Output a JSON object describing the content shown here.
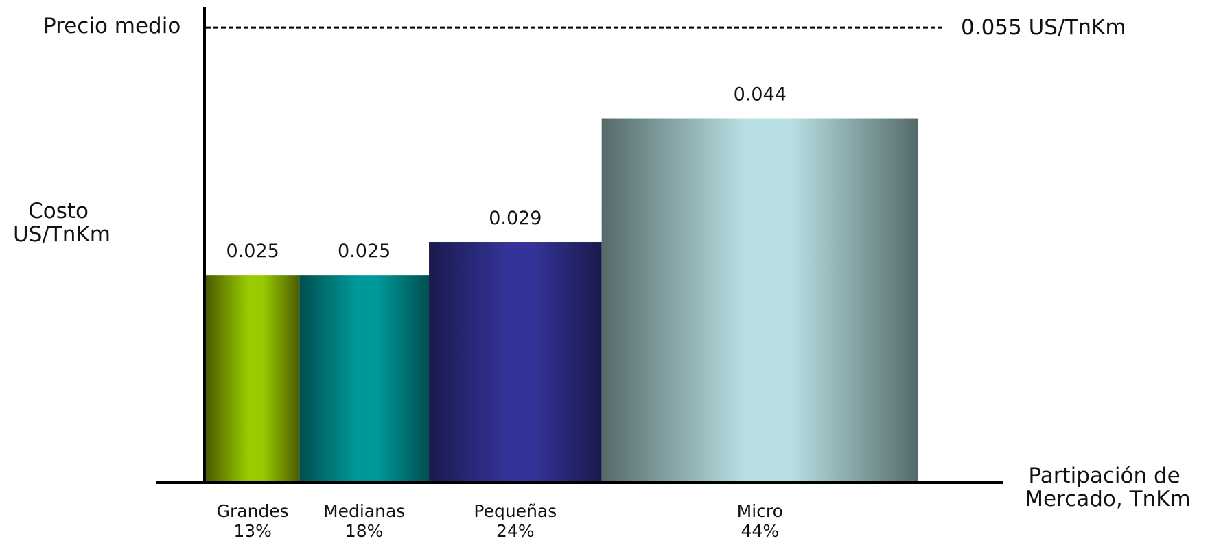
{
  "chart_data": {
    "type": "bar",
    "variable_width": true,
    "ylabel": [
      "Costo",
      "US/TnKm"
    ],
    "xlabel": [
      "Partipación de",
      "Mercado, TnKm"
    ],
    "categories": [
      "Grandes",
      "Medianas",
      "Pequeñas",
      "Micro"
    ],
    "shares": [
      "13%",
      "18%",
      "24%",
      "44%"
    ],
    "share_values": [
      13,
      18,
      24,
      44
    ],
    "values": [
      0.025,
      0.025,
      0.029,
      0.044
    ],
    "value_labels": [
      "0.025",
      "0.025",
      "0.029",
      "0.044"
    ],
    "ylim": [
      0,
      0.06
    ],
    "grid": false,
    "reference_line": {
      "label": "Precio medio",
      "value": 0.055,
      "value_label": "0.055 US/TnKm"
    },
    "colors": {
      "Grandes": [
        "#4d5a00",
        "#99cc00"
      ],
      "Medianas": [
        "#004f4f",
        "#009999"
      ],
      "Pequeñas": [
        "#1a1a4d",
        "#333399"
      ],
      "Micro": [
        "#556a6a",
        "#b8dfe2"
      ]
    }
  }
}
